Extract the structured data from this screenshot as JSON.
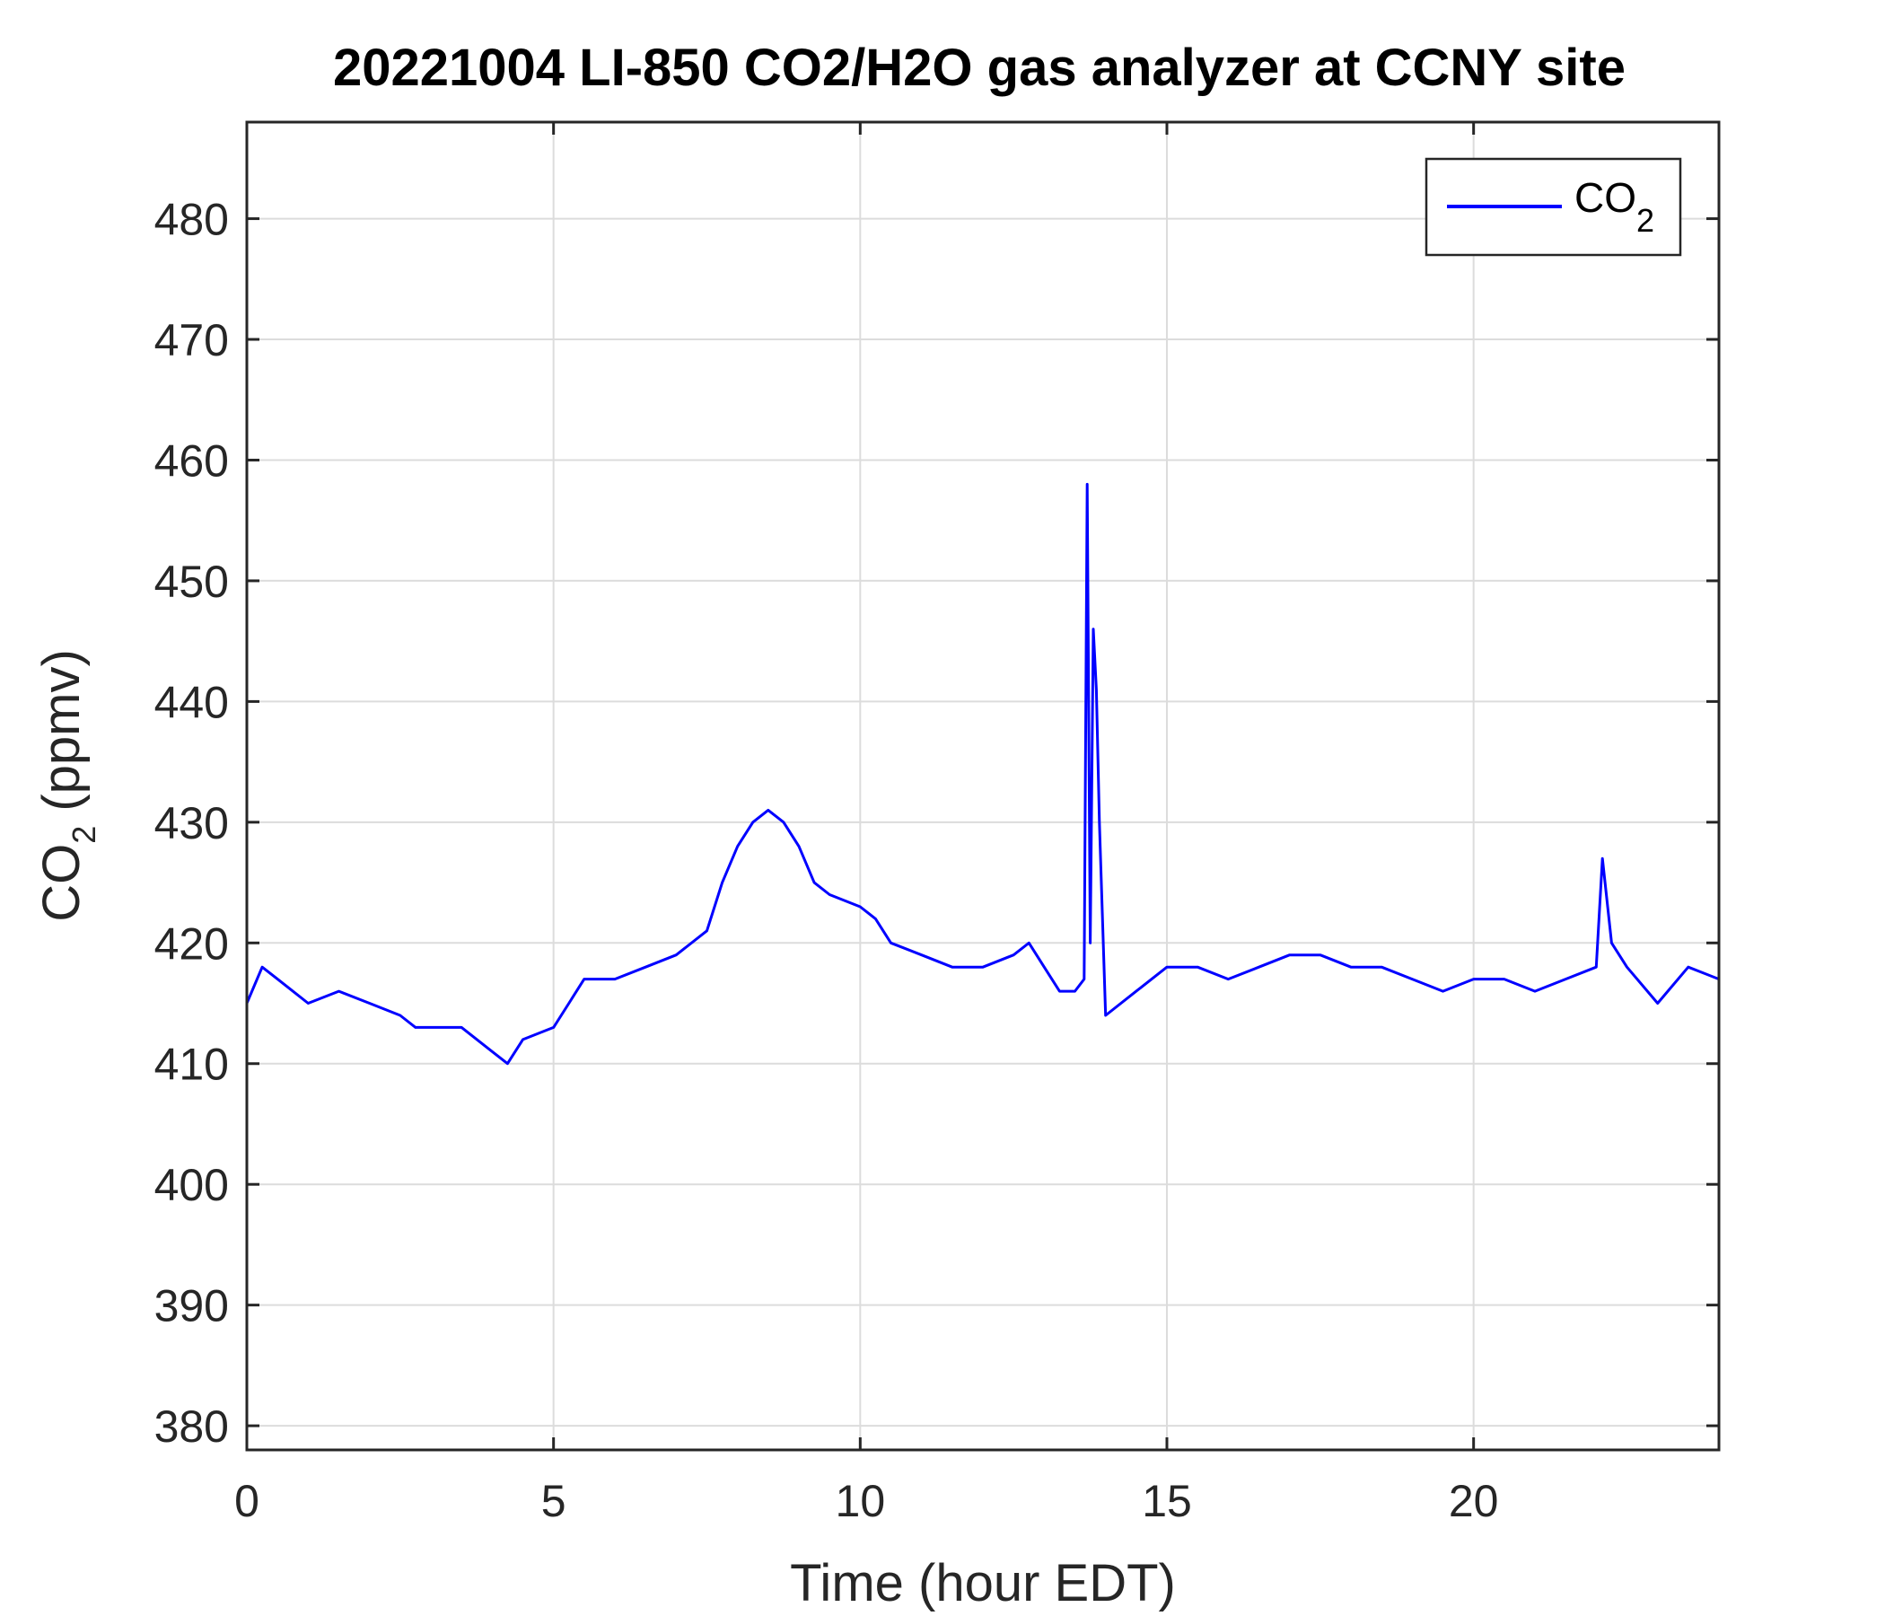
{
  "chart_data": {
    "type": "line",
    "title": "20221004 LI-850 CO2/H2O gas analyzer at CCNY site",
    "xlabel": "Time (hour EDT)",
    "ylabel": {
      "main": "CO",
      "sub": "2",
      "unit": " (ppmv)"
    },
    "xlim": [
      0,
      24
    ],
    "ylim": [
      378,
      488
    ],
    "xticks": [
      0,
      5,
      10,
      15,
      20
    ],
    "yticks": [
      380,
      390,
      400,
      410,
      420,
      430,
      440,
      450,
      460,
      470,
      480
    ],
    "grid": true,
    "legend": {
      "position": "top-right",
      "label": {
        "main": "CO",
        "sub": "2"
      }
    },
    "colors": {
      "line": "#0000ff",
      "axis": "#262626",
      "grid": "#dcdcdc"
    },
    "series": [
      {
        "name": "CO2",
        "x": [
          0,
          0.25,
          0.5,
          0.75,
          1,
          1.5,
          2,
          2.5,
          2.75,
          3,
          3.5,
          4,
          4.25,
          4.5,
          5,
          5.25,
          5.5,
          6,
          6.5,
          7,
          7.5,
          7.75,
          8,
          8.25,
          8.5,
          8.75,
          9,
          9.25,
          9.5,
          10,
          10.25,
          10.5,
          11,
          11.5,
          12,
          12.5,
          12.75,
          13,
          13.25,
          13.5,
          13.65,
          13.7,
          13.75,
          13.8,
          13.85,
          13.9,
          14,
          14.5,
          15,
          15.5,
          16,
          16.5,
          17,
          17.5,
          18,
          18.5,
          19,
          19.5,
          20,
          20.5,
          21,
          21.5,
          22,
          22.1,
          22.25,
          22.5,
          23,
          23.5,
          24
        ],
        "y": [
          415,
          418,
          417,
          416,
          415,
          416,
          415,
          414,
          413,
          413,
          413,
          411,
          410,
          412,
          413,
          415,
          417,
          417,
          418,
          419,
          421,
          425,
          428,
          430,
          431,
          430,
          428,
          425,
          424,
          423,
          422,
          420,
          419,
          418,
          418,
          419,
          420,
          418,
          416,
          416,
          417,
          458,
          420,
          446,
          441,
          430,
          414,
          416,
          418,
          418,
          417,
          418,
          419,
          419,
          418,
          418,
          417,
          416,
          417,
          417,
          416,
          417,
          418,
          427,
          420,
          418,
          415,
          418,
          417
        ]
      }
    ]
  }
}
